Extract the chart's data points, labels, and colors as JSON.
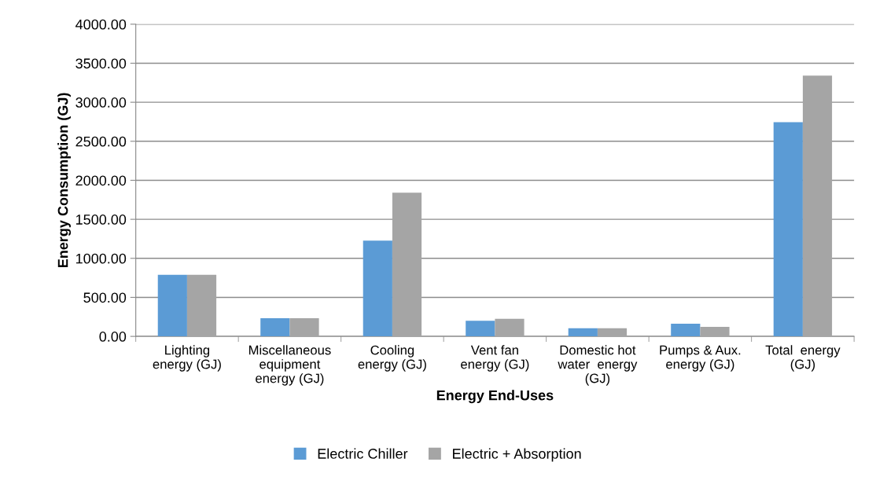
{
  "chart_data": {
    "type": "bar",
    "xlabel": "Energy End-Uses",
    "ylabel": "Energy Consumption (GJ)",
    "categories": [
      "Lighting\nenergy (GJ)",
      "Miscellaneous\nequipment\nenergy (GJ)",
      "Cooling\nenergy (GJ)",
      "Vent fan\nenergy (GJ)",
      "Domestic hot\nwater  energy\n(GJ)",
      "Pumps & Aux.\nenergy (GJ)",
      "Total  energy\n(GJ)"
    ],
    "series": [
      {
        "name": "Electric Chiller",
        "color": "#5b9bd5",
        "values": [
          790,
          232,
          1227,
          199,
          105,
          163,
          2745
        ]
      },
      {
        "name": "Electric + Absorption",
        "color": "#a5a5a5",
        "values": [
          790,
          232,
          1842,
          226,
          105,
          122,
          3340
        ]
      }
    ],
    "ylim": [
      0,
      4000
    ],
    "yticks": [
      {
        "value": 0,
        "label": "0.00"
      },
      {
        "value": 500,
        "label": "500.00"
      },
      {
        "value": 1000,
        "label": "1000.00"
      },
      {
        "value": 1500,
        "label": "1500.00"
      },
      {
        "value": 2000,
        "label": "2000.00"
      },
      {
        "value": 2500,
        "label": "2500.00"
      },
      {
        "value": 3000,
        "label": "3000.00"
      },
      {
        "value": 3500,
        "label": "3500.00"
      },
      {
        "value": 4000,
        "label": "4000.00"
      }
    ],
    "grid": "y",
    "legend": "bottom"
  }
}
